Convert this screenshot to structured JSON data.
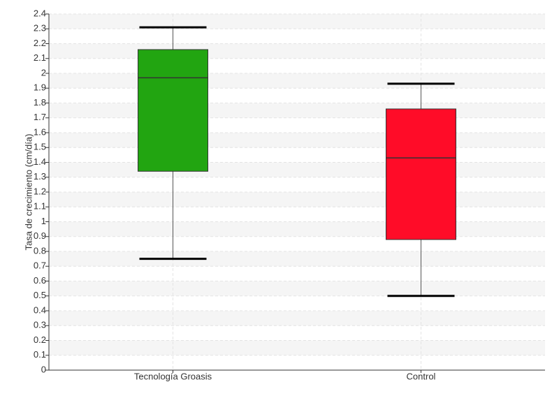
{
  "chart_data": {
    "type": "box",
    "y_label": "Tasa de crecimiento (cm/día)",
    "categories": [
      "Tecnología Groasis",
      "Control"
    ],
    "whislo": [
      0.75,
      0.5
    ],
    "q1": [
      1.34,
      0.88
    ],
    "median": [
      1.97,
      1.43
    ],
    "q3": [
      2.16,
      1.76
    ],
    "whishi": [
      2.31,
      1.93
    ],
    "colors": [
      "#22a511",
      "#ff0c28"
    ],
    "ylim": [
      0,
      2.4
    ],
    "yticks": [
      0,
      0.1,
      0.2,
      0.3,
      0.4,
      0.5,
      0.6,
      0.7,
      0.8,
      0.9,
      1,
      1.1,
      1.2,
      1.3,
      1.4,
      1.5,
      1.6,
      1.7,
      1.8,
      1.9,
      2,
      2.1,
      2.2,
      2.3,
      2.4
    ],
    "grid": true
  }
}
